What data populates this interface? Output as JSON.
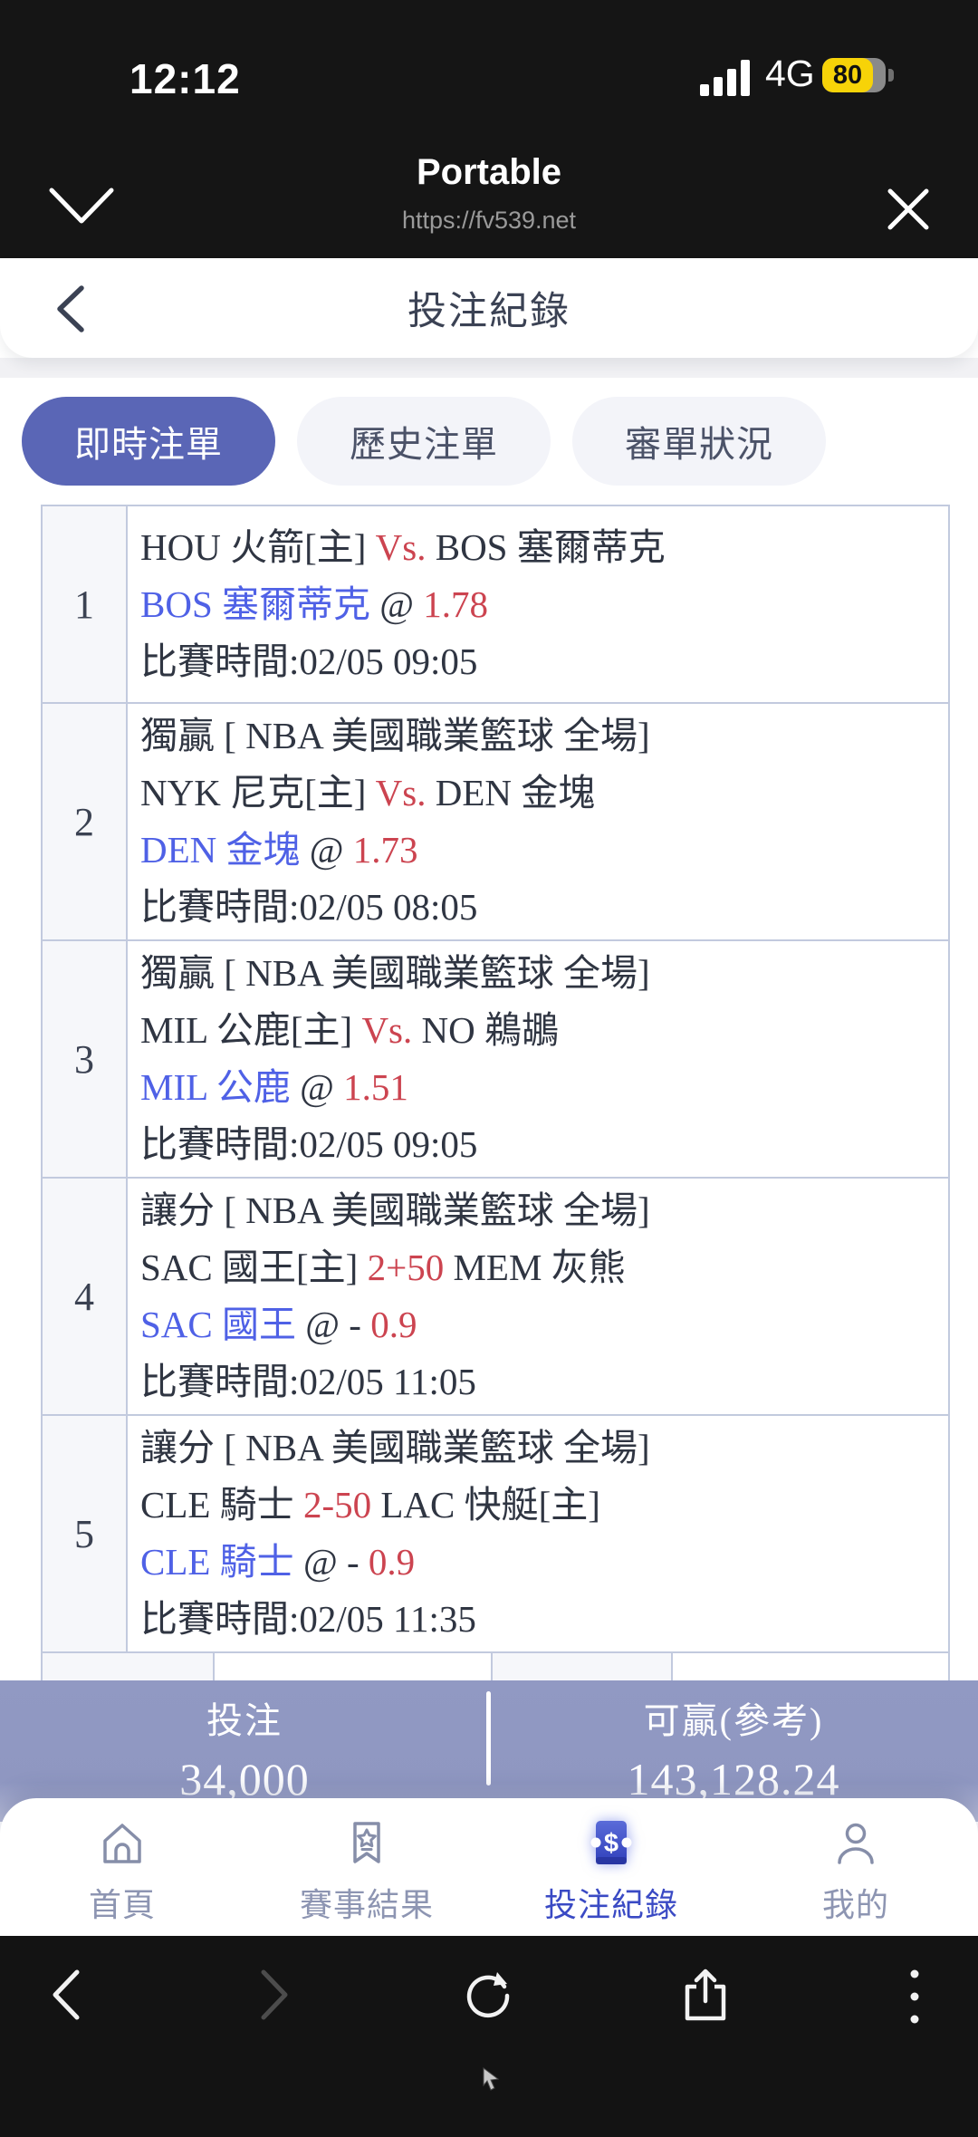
{
  "status_bar": {
    "time": "12:12",
    "network": "4G",
    "battery_percent": "80"
  },
  "browser_header": {
    "title": "Portable",
    "url": "https://fv539.net"
  },
  "app_nav": {
    "title": "投注紀錄"
  },
  "tabs": [
    {
      "label": "即時注單",
      "active": true
    },
    {
      "label": "歷史注單",
      "active": false
    },
    {
      "label": "審單狀況",
      "active": false
    }
  ],
  "bets": [
    {
      "index": "1",
      "lines": [
        [
          {
            "t": "HOU 火箭[主] ",
            "c": "dark"
          },
          {
            "t": "Vs. ",
            "c": "red"
          },
          {
            "t": "BOS 塞爾蒂克",
            "c": "dark"
          }
        ],
        [
          {
            "t": "BOS 塞爾蒂克 ",
            "c": "blue"
          },
          {
            "t": "@ ",
            "c": "dark"
          },
          {
            "t": "1.78",
            "c": "red"
          }
        ],
        [
          {
            "t": "比賽時間:02/05 09:05",
            "c": "dark"
          }
        ]
      ]
    },
    {
      "index": "2",
      "lines": [
        [
          {
            "t": "獨贏 [ NBA 美國職業籃球 全場]",
            "c": "dark"
          }
        ],
        [
          {
            "t": "NYK 尼克[主] ",
            "c": "dark"
          },
          {
            "t": "Vs. ",
            "c": "red"
          },
          {
            "t": "DEN 金塊",
            "c": "dark"
          }
        ],
        [
          {
            "t": "DEN 金塊 ",
            "c": "blue"
          },
          {
            "t": "@ ",
            "c": "dark"
          },
          {
            "t": "1.73",
            "c": "red"
          }
        ],
        [
          {
            "t": "比賽時間:02/05 08:05",
            "c": "dark"
          }
        ]
      ]
    },
    {
      "index": "3",
      "lines": [
        [
          {
            "t": "獨贏 [ NBA 美國職業籃球 全場]",
            "c": "dark"
          }
        ],
        [
          {
            "t": "MIL 公鹿[主] ",
            "c": "dark"
          },
          {
            "t": "Vs. ",
            "c": "red"
          },
          {
            "t": "NO 鵜鶘",
            "c": "dark"
          }
        ],
        [
          {
            "t": "MIL 公鹿 ",
            "c": "blue"
          },
          {
            "t": "@ ",
            "c": "dark"
          },
          {
            "t": "1.51",
            "c": "red"
          }
        ],
        [
          {
            "t": "比賽時間:02/05 09:05",
            "c": "dark"
          }
        ]
      ]
    },
    {
      "index": "4",
      "lines": [
        [
          {
            "t": "讓分 [ NBA 美國職業籃球 全場]",
            "c": "dark"
          }
        ],
        [
          {
            "t": "SAC 國王[主] ",
            "c": "dark"
          },
          {
            "t": "2+50 ",
            "c": "red"
          },
          {
            "t": "MEM 灰熊",
            "c": "dark"
          }
        ],
        [
          {
            "t": "SAC 國王 ",
            "c": "blue"
          },
          {
            "t": "@ - ",
            "c": "dark"
          },
          {
            "t": "0.9",
            "c": "red"
          }
        ],
        [
          {
            "t": "比賽時間:02/05 11:05",
            "c": "dark"
          }
        ]
      ]
    },
    {
      "index": "5",
      "lines": [
        [
          {
            "t": "讓分 [ NBA 美國職業籃球 全場]",
            "c": "dark"
          }
        ],
        [
          {
            "t": "CLE 騎士 ",
            "c": "dark"
          },
          {
            "t": "2-50 ",
            "c": "red"
          },
          {
            "t": "LAC 快艇[主]",
            "c": "dark"
          }
        ],
        [
          {
            "t": "CLE 騎士 ",
            "c": "blue"
          },
          {
            "t": "@ - ",
            "c": "dark"
          },
          {
            "t": "0.9",
            "c": "red"
          }
        ],
        [
          {
            "t": "比賽時間:02/05 11:35",
            "c": "dark"
          }
        ]
      ]
    }
  ],
  "summary": {
    "stake_label": "投注",
    "stake_value": "34,000",
    "win_label": "可贏(參考)",
    "win_value": "143,128.24"
  },
  "bottom_tabs": [
    {
      "label": "首頁",
      "icon": "home-icon",
      "active": false
    },
    {
      "label": "賽事結果",
      "icon": "results-ribbon-icon",
      "active": false
    },
    {
      "label": "投注紀錄",
      "icon": "bet-ticket-icon",
      "active": true
    },
    {
      "label": "我的",
      "icon": "profile-icon",
      "active": false
    }
  ],
  "browser_controls": [
    "back",
    "forward",
    "reload",
    "share",
    "more"
  ],
  "colors": {
    "accent_blue": "#5a66b6",
    "team_blue": "#4f61e6",
    "highlight_red": "#cc4450",
    "summary_bg": "#9098c2",
    "active_tab_text": "#3a4ac4",
    "battery_yellow": "#f7d308",
    "table_border": "#c2cade"
  }
}
